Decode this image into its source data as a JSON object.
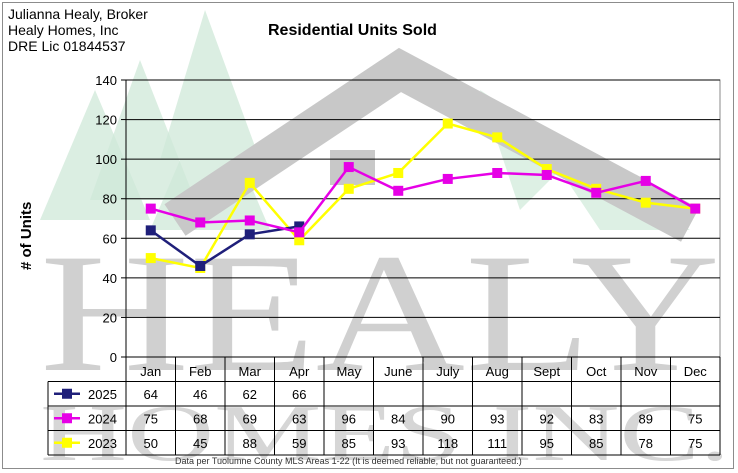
{
  "header": {
    "broker_lines": [
      "Julianna Healy, Broker",
      "Healy Homes, Inc",
      "DRE Lic 01844537"
    ]
  },
  "footnote": "Data per Tuolumne County MLS Areas 1-22 (It is deemed reliable, but not guaranteed.)",
  "watermark": {
    "text_line1": "HEALY",
    "text_line2": "HOMES INC."
  },
  "chart_data": {
    "type": "line",
    "title": "Residential Units Sold",
    "ylabel": "# of Units",
    "xlabel": "",
    "ylim": [
      0,
      140
    ],
    "yticks": [
      0,
      20,
      40,
      60,
      80,
      100,
      120,
      140
    ],
    "grid": true,
    "legend": "data-table-below",
    "categories": [
      "Jan",
      "Feb",
      "Mar",
      "Apr",
      "May",
      "June",
      "July",
      "Aug",
      "Sept",
      "Oct",
      "Nov",
      "Dec"
    ],
    "series": [
      {
        "name": "2025",
        "color": "#1f1f7a",
        "values": [
          64,
          46,
          62,
          66,
          null,
          null,
          null,
          null,
          null,
          null,
          null,
          null
        ]
      },
      {
        "name": "2024",
        "color": "#e600e6",
        "values": [
          75,
          68,
          69,
          63,
          96,
          84,
          90,
          93,
          92,
          83,
          89,
          75
        ]
      },
      {
        "name": "2023",
        "color": "#ffff00",
        "values": [
          50,
          45,
          88,
          59,
          85,
          93,
          118,
          111,
          95,
          85,
          78,
          75
        ]
      }
    ]
  }
}
